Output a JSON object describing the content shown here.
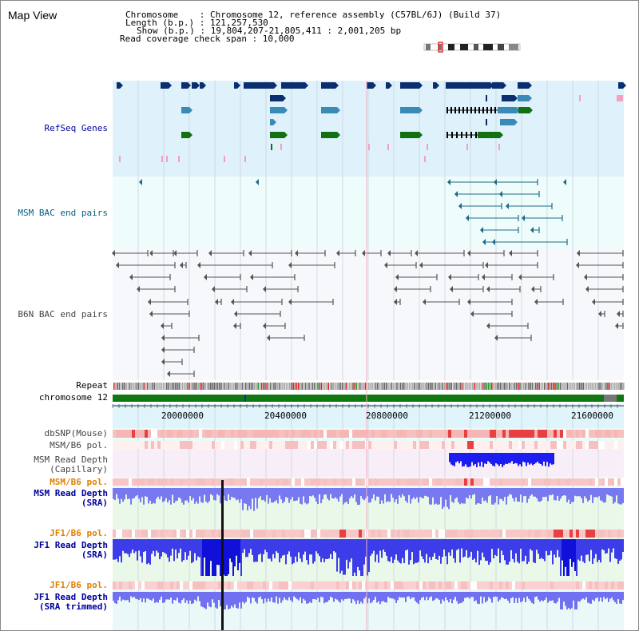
{
  "title": "Map View",
  "info": {
    "line1": "Chromosome    : Chromosome 12, reference assembly (C57BL/6J) (Build 37)",
    "line2": "Length (b.p.) : 121,257,530",
    "line3": "Show (b.p.) : 19,804,207-21,805,411 : 2,001,205 bp",
    "line4": "Read coverage check span : 10,000"
  },
  "tracks": {
    "refseq": "RefSeq Genes",
    "msm_bac": "MSM BAC end pairs",
    "b6n_bac": "B6N BAC end pairs",
    "repeat": "Repeat",
    "chromosome": "chromosome 12",
    "dbsnp": "dbSNP(Mouse)",
    "msm_b6_pol": "MSM/B6 pol.",
    "msm_cap_1": "MSM Read Depth",
    "msm_cap_2": "(Capillary)",
    "msm_b6_pol2": "MSM/B6 pol.",
    "msm_sra_1": "MSM Read Depth",
    "msm_sra_2": "(SRA)",
    "jf1_b6_pol": "JF1/B6 pol.",
    "jf1_sra_1": "JF1 Read Depth",
    "jf1_sra_2": "(SRA)",
    "jf1_b6_pol2": "JF1/B6 pol.",
    "jf1_trim_1": "JF1 Read Depth",
    "jf1_trim_2": "(SRA trimmed)"
  },
  "ruler": {
    "labels": [
      "20000000",
      "20400000",
      "20800000",
      "21200000",
      "21600000"
    ]
  },
  "colors": {
    "refseq_bg": "#dff1fb",
    "bac_bg": "#eefcfb",
    "b6n_bg": "#f7f8fb",
    "label_blue": "#0000a0",
    "label_teal": "#006080",
    "label_orange": "#e08000",
    "gene_dark": "#0a2e6e",
    "gene_mid": "#3a8ab8",
    "gene_green": "#127012"
  }
}
